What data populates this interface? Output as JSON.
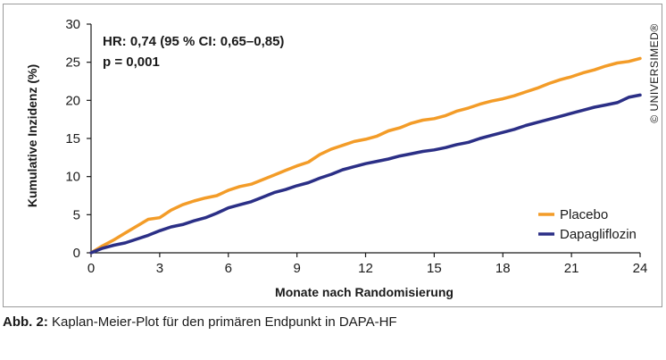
{
  "chart_data": {
    "type": "line",
    "title": "",
    "xlabel": "Monate nach Randomisierung",
    "ylabel": "Kumulative Inzidenz (%)",
    "xlim": [
      0,
      24
    ],
    "ylim": [
      0,
      30
    ],
    "xticks": [
      0,
      3,
      6,
      9,
      12,
      15,
      18,
      21,
      24
    ],
    "yticks": [
      0,
      5,
      10,
      15,
      20,
      25,
      30
    ],
    "grid": false,
    "legend_position": "bottom-right",
    "annotations": [
      "HR: 0,74 (95 % CI: 0,65–0,85)",
      "p = 0,001"
    ],
    "series": [
      {
        "name": "Placebo",
        "color": "#f39c28",
        "x": [
          0,
          0.5,
          1,
          1.5,
          2,
          2.5,
          3,
          3.5,
          4,
          4.5,
          5,
          5.5,
          6,
          6.5,
          7,
          7.5,
          8,
          8.5,
          9,
          9.5,
          10,
          10.5,
          11,
          11.5,
          12,
          12.5,
          13,
          13.5,
          14,
          14.5,
          15,
          15.5,
          16,
          16.5,
          17,
          17.5,
          18,
          18.5,
          19,
          19.5,
          20,
          20.5,
          21,
          21.5,
          22,
          22.5,
          23,
          23.5,
          24
        ],
        "values": [
          0,
          0.9,
          1.7,
          2.6,
          3.5,
          4.4,
          4.6,
          5.6,
          6.3,
          6.8,
          7.2,
          7.5,
          8.2,
          8.7,
          9.0,
          9.6,
          10.2,
          10.8,
          11.4,
          11.9,
          12.9,
          13.6,
          14.1,
          14.6,
          14.9,
          15.3,
          16.0,
          16.4,
          17.0,
          17.4,
          17.6,
          18.0,
          18.6,
          19.0,
          19.5,
          19.9,
          20.2,
          20.6,
          21.1,
          21.6,
          22.2,
          22.7,
          23.1,
          23.6,
          24.0,
          24.5,
          24.9,
          25.1,
          25.5
        ]
      },
      {
        "name": "Dapagliflozin",
        "color": "#2b2f86",
        "x": [
          0,
          0.5,
          1,
          1.5,
          2,
          2.5,
          3,
          3.5,
          4,
          4.5,
          5,
          5.5,
          6,
          6.5,
          7,
          7.5,
          8,
          8.5,
          9,
          9.5,
          10,
          10.5,
          11,
          11.5,
          12,
          12.5,
          13,
          13.5,
          14,
          14.5,
          15,
          15.5,
          16,
          16.5,
          17,
          17.5,
          18,
          18.5,
          19,
          19.5,
          20,
          20.5,
          21,
          21.5,
          22,
          22.5,
          23,
          23.5,
          24
        ],
        "values": [
          0,
          0.6,
          1.0,
          1.3,
          1.8,
          2.3,
          2.9,
          3.4,
          3.7,
          4.2,
          4.6,
          5.2,
          5.9,
          6.3,
          6.7,
          7.3,
          7.9,
          8.3,
          8.8,
          9.2,
          9.8,
          10.3,
          10.9,
          11.3,
          11.7,
          12.0,
          12.3,
          12.7,
          13.0,
          13.3,
          13.5,
          13.8,
          14.2,
          14.5,
          15.0,
          15.4,
          15.8,
          16.2,
          16.7,
          17.1,
          17.5,
          17.9,
          18.3,
          18.7,
          19.1,
          19.4,
          19.7,
          20.4,
          20.7
        ]
      }
    ]
  },
  "watermark": "© UNIVERSIMED®",
  "caption": {
    "label": "Abb. 2:",
    "text": " Kaplan-Meier-Plot für den primären Endpunkt in DAPA-HF"
  }
}
